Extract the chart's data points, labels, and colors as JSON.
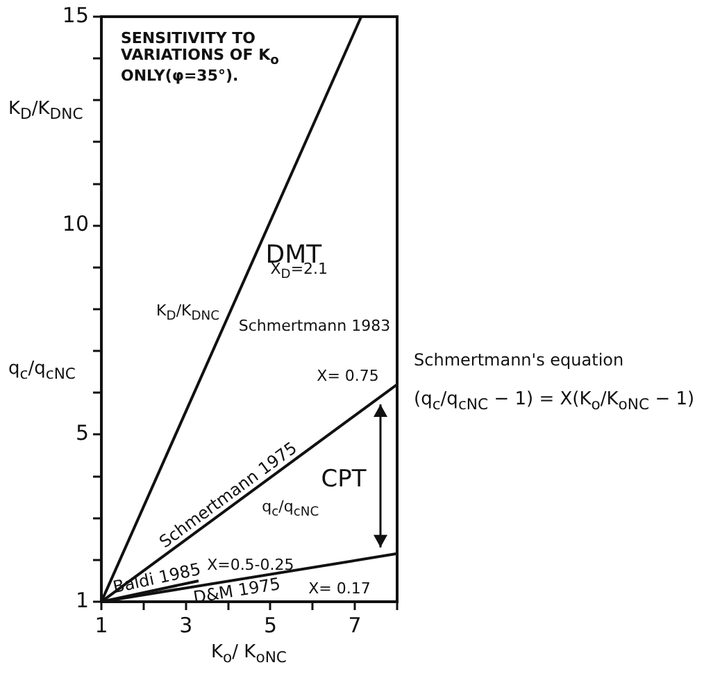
{
  "chart_data": {
    "type": "line",
    "title": "SENSITIVITY TO VARIATIONS OF K$_{o}$ ONLY(φ=35°).",
    "xlabel": "K$_{o}$/ K$_{oNC}$",
    "ylabel": "K$_{D}$/K$_{DNC}$",
    "xlim": [
      1,
      8
    ],
    "xticks": [
      1,
      {
        "value": 2,
        "label": null
      },
      3,
      {
        "value": 4,
        "label": null
      },
      5,
      {
        "value": 6,
        "label": null
      },
      7,
      {
        "value": 8,
        "label": null
      }
    ],
    "ylim": [
      1,
      15
    ],
    "yticks": [
      1,
      {
        "value": 2,
        "label": null
      },
      {
        "value": 3,
        "label": null
      },
      {
        "value": 4,
        "label": null
      },
      5,
      {
        "value": 6,
        "label": null
      },
      {
        "value": 7,
        "label": null
      },
      {
        "value": 8,
        "label": null
      },
      {
        "value": 9,
        "label": null
      },
      10,
      {
        "value": 11,
        "label": null
      },
      {
        "value": 12,
        "label": null
      },
      {
        "value": 13,
        "label": null
      },
      {
        "value": 14,
        "label": null
      },
      15
    ],
    "grid": false,
    "legend": false,
    "marker": "none",
    "line_style": "solid",
    "series": [
      {
        "name": "DMT",
        "color": "#111111",
        "x": [
          1,
          7.15
        ],
        "values": [
          1,
          15
        ]
      },
      {
        "name": "Schmertmann 1975",
        "color": "#111111",
        "x": [
          1,
          8
        ],
        "values": [
          1,
          6.2
        ]
      },
      {
        "name": "Baldi 1985",
        "color": "#111111",
        "x": [
          1,
          3.3
        ],
        "values": [
          1,
          1.5
        ]
      },
      {
        "name": "D&M 1975",
        "color": "#111111",
        "x": [
          1,
          8
        ],
        "values": [
          1,
          2.15
        ]
      }
    ],
    "annotations": [
      "q$_{c}$/q$_{cNC}$",
      "Schmertmann's equation",
      "(q$_{c}$/q$_{cNC}$ − 1) = X(K$_{o}$/K$_{oNC}$ − 1)",
      "X$_{D}$=2.1",
      "K$_{D}$/K$_{DNC}$",
      "Schmertmann 1983",
      "X= 0.75",
      "q$_{c}$/q$_{cNC}$",
      "CPT",
      "X=0.5-0.25",
      "X= 0.17"
    ]
  }
}
